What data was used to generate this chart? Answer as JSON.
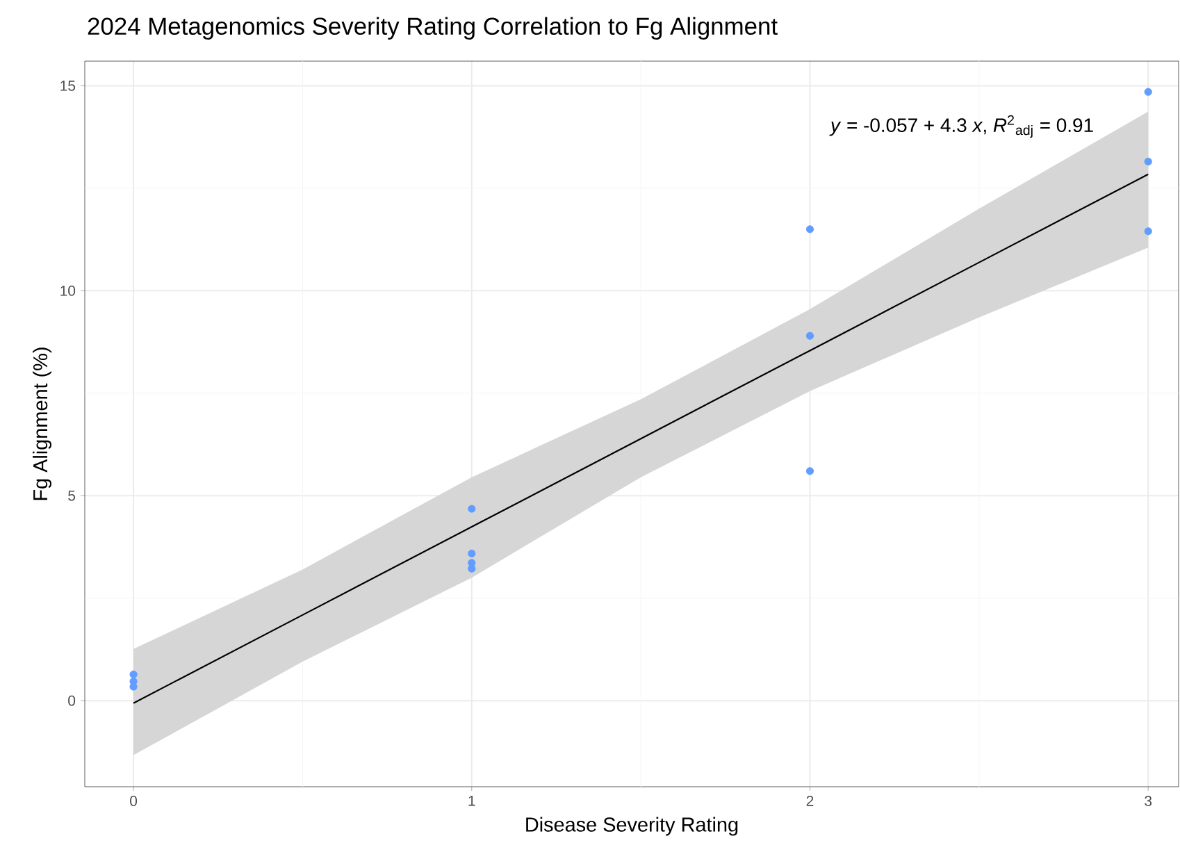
{
  "chart_data": {
    "type": "scatter",
    "title": "2024 Metagenomics Severity Rating Correlation to Fg Alignment",
    "xlabel": "Disease Severity Rating",
    "ylabel": "Fg Alignment (%)",
    "annotations": [
      "*y* = -0.057 + 4.3 *x*, *R*$^{2}$$_{adj}$ = 0.91"
    ],
    "xlim": [
      -0.144,
      3.09
    ],
    "ylim": [
      -2.1,
      15.6
    ],
    "xticks": [
      0,
      {
        "value": 0.5,
        "label": null
      },
      1,
      {
        "value": 1.5,
        "label": null
      },
      2,
      {
        "value": 2.5,
        "label": null
      },
      3
    ],
    "yticks": [
      0,
      {
        "value": 2.5,
        "label": null
      },
      5,
      {
        "value": 7.5,
        "label": null
      },
      10,
      {
        "value": 12.5,
        "label": null
      },
      15
    ],
    "grid": true,
    "series": [
      {
        "type": "line",
        "marker": "none",
        "color": "#000000",
        "x": [
          0,
          0.5,
          1,
          1.5,
          2,
          2.5,
          3
        ],
        "values": [
          -0.06,
          2.09,
          4.24,
          6.39,
          8.54,
          10.69,
          12.84
        ],
        "lower": [
          -1.33,
          0.95,
          3.0,
          5.45,
          7.55,
          9.35,
          11.05
        ],
        "upper": [
          1.26,
          3.2,
          5.45,
          7.35,
          9.55,
          12.0,
          14.37
        ]
      },
      {
        "marker": "circle",
        "color": "#619cff",
        "x": [
          0,
          0,
          0,
          1,
          1,
          1,
          1,
          2,
          2,
          2,
          3,
          3,
          3
        ],
        "values": [
          0.64,
          0.47,
          0.34,
          4.68,
          3.59,
          3.36,
          3.22,
          11.5,
          8.9,
          5.6,
          14.85,
          13.15,
          11.45
        ]
      }
    ]
  }
}
